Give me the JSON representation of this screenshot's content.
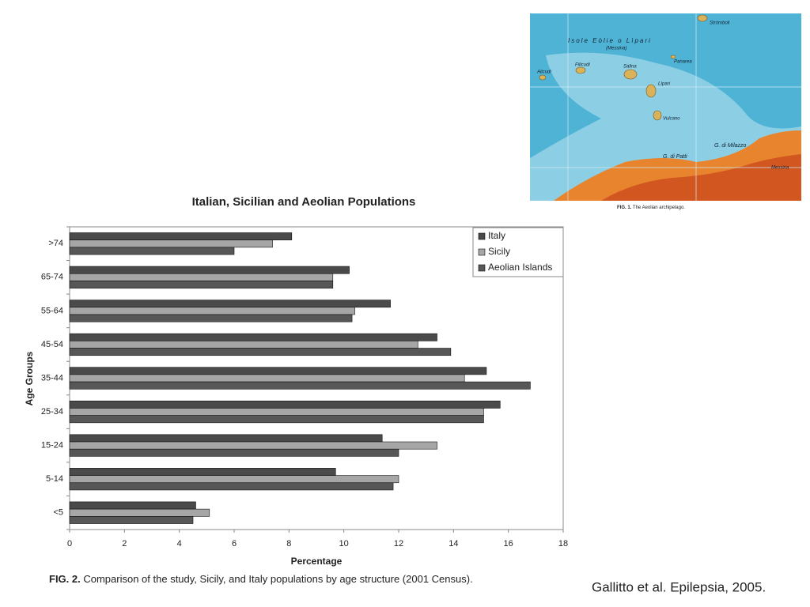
{
  "chart_data": {
    "type": "bar",
    "orientation": "horizontal",
    "title": "Italian, Sicilian and Aeolian Populations",
    "x_label": "Percentage",
    "y_label": "Age Groups",
    "categories": [
      ">74",
      "65-74",
      "55-64",
      "45-54",
      "35-44",
      "25-34",
      "15-24",
      "5-14",
      "<5"
    ],
    "series": [
      {
        "name": "Italy",
        "color": "#4a4a4a",
        "values": [
          8.1,
          10.2,
          11.7,
          13.4,
          15.2,
          15.7,
          11.4,
          9.7,
          4.6
        ]
      },
      {
        "name": "Sicily",
        "color": "#a6a6a6",
        "values": [
          7.4,
          9.6,
          10.4,
          12.7,
          14.4,
          15.1,
          13.4,
          12.0,
          5.1
        ]
      },
      {
        "name": "Aeolian Islands",
        "color": "#575757",
        "values": [
          6.0,
          9.6,
          10.3,
          13.9,
          16.8,
          15.1,
          12.0,
          11.8,
          4.5
        ]
      }
    ],
    "xlim": [
      0,
      18
    ],
    "xticks": [
      0,
      2,
      4,
      6,
      8,
      10,
      12,
      14,
      16,
      18
    ],
    "grid": false,
    "legend": "upper right"
  },
  "caption": {
    "label": "FIG. 2.",
    "text": "Comparison of the study, Sicily, and Italy populations by age structure (2001 Census)."
  },
  "citation": "Gallitto et al. Epilepsia, 2005.",
  "map": {
    "labels": [
      "Isole Eòlie o Lìpari",
      "(Messina)",
      "Strómboli",
      "Panarea",
      "Salina",
      "Filicudi",
      "Alicudi",
      "Lìpari",
      "Vulcano",
      "G. di Patti",
      "G. di Milazzo",
      "Messina"
    ],
    "caption_label": "FIG. 1.",
    "caption_text": "The Aeolian archipelago."
  }
}
